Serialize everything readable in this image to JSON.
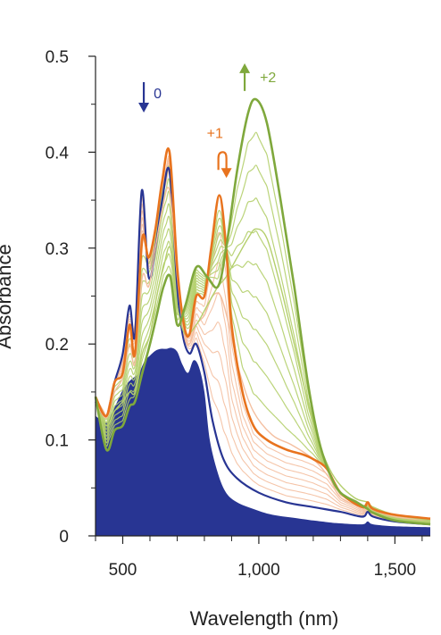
{
  "chart_data": {
    "type": "line",
    "xlabel": "Wavelength (nm)",
    "ylabel": "Absorbance",
    "xlim": [
      400,
      1630
    ],
    "ylim": [
      0,
      0.5
    ],
    "x_ticks": [
      500,
      1000,
      1500
    ],
    "x_tick_labels": [
      "500",
      "1,000",
      "1,500"
    ],
    "y_ticks": [
      0,
      0.1,
      0.2,
      0.3,
      0.4,
      0.5
    ],
    "y_tick_labels": [
      "0",
      "0.1",
      "0.2",
      "0.3",
      "0.4",
      "0.5"
    ],
    "grid": false,
    "legend": "none",
    "colors": {
      "state0": "#283593",
      "state1": "#E8731E",
      "state1_light": "#F4BFA0",
      "state2": "#7FA83C",
      "state2_light": "#B4CF6C"
    },
    "annotations": [
      {
        "text": "0",
        "x": 620,
        "y": 0.46,
        "color": "#283593",
        "arrow": "down"
      },
      {
        "text": "+1",
        "x": 835,
        "y": 0.415,
        "color": "#E8731E",
        "arrow": "loop-down"
      },
      {
        "text": "+2",
        "x": 1030,
        "y": 0.475,
        "color": "#7FA83C",
        "arrow": "up"
      }
    ],
    "series": [
      {
        "state": "0",
        "style": "filled",
        "x": [
          400,
          440,
          460,
          480,
          500,
          520,
          540,
          560,
          580,
          600,
          620,
          640,
          660,
          680,
          700,
          720,
          740,
          760,
          780,
          800,
          820,
          850,
          880,
          920,
          980,
          1050,
          1150,
          1200,
          1260,
          1300,
          1380,
          1400,
          1420,
          1500,
          1630
        ],
        "y": [
          0.125,
          0.118,
          0.128,
          0.14,
          0.152,
          0.16,
          0.165,
          0.17,
          0.182,
          0.188,
          0.193,
          0.195,
          0.195,
          0.196,
          0.192,
          0.178,
          0.17,
          0.183,
          0.176,
          0.15,
          0.1,
          0.065,
          0.045,
          0.035,
          0.028,
          0.022,
          0.018,
          0.016,
          0.014,
          0.013,
          0.012,
          0.015,
          0.012,
          0.01,
          0.009
        ]
      },
      {
        "state": "0",
        "style": "intermediate",
        "x": [
          400,
          440,
          470,
          500,
          525,
          545,
          570,
          595,
          620,
          645,
          672,
          700,
          720,
          745,
          770,
          800,
          830,
          870,
          920,
          1000,
          1100,
          1200,
          1300,
          1380,
          1400,
          1420,
          1500,
          1630
        ],
        "y": [
          0.14,
          0.125,
          0.16,
          0.19,
          0.24,
          0.21,
          0.36,
          0.27,
          0.3,
          0.35,
          0.38,
          0.26,
          0.21,
          0.19,
          0.2,
          0.17,
          0.12,
          0.08,
          0.06,
          0.045,
          0.035,
          0.03,
          0.025,
          0.02,
          0.025,
          0.02,
          0.015,
          0.012
        ]
      },
      {
        "state": "+1",
        "style": "bold",
        "x": [
          400,
          440,
          470,
          500,
          525,
          545,
          572,
          595,
          620,
          645,
          672,
          700,
          725,
          745,
          770,
          800,
          825,
          855,
          880,
          900,
          940,
          980,
          1030,
          1100,
          1160,
          1200,
          1250,
          1300,
          1380,
          1400,
          1420,
          1500,
          1630
        ],
        "y": [
          0.145,
          0.125,
          0.16,
          0.17,
          0.22,
          0.19,
          0.31,
          0.29,
          0.32,
          0.37,
          0.4,
          0.28,
          0.22,
          0.21,
          0.25,
          0.25,
          0.3,
          0.355,
          0.3,
          0.22,
          0.15,
          0.115,
          0.1,
          0.09,
          0.085,
          0.08,
          0.07,
          0.045,
          0.03,
          0.035,
          0.028,
          0.022,
          0.018
        ]
      },
      {
        "state": "+1",
        "style": "intermediate",
        "x": [
          400,
          440,
          470,
          500,
          525,
          545,
          572,
          595,
          620,
          645,
          672,
          700,
          725,
          745,
          770,
          800,
          830,
          860,
          890,
          930,
          980,
          1050,
          1120,
          1200,
          1260,
          1300,
          1380,
          1400,
          1420,
          1500,
          1630
        ],
        "y": [
          0.14,
          0.123,
          0.15,
          0.165,
          0.2,
          0.18,
          0.27,
          0.26,
          0.3,
          0.34,
          0.36,
          0.27,
          0.21,
          0.2,
          0.22,
          0.23,
          0.25,
          0.25,
          0.22,
          0.17,
          0.13,
          0.105,
          0.095,
          0.08,
          0.06,
          0.04,
          0.03,
          0.033,
          0.027,
          0.02,
          0.016
        ]
      },
      {
        "state": "+2",
        "style": "intermediate",
        "x": [
          400,
          440,
          470,
          500,
          525,
          545,
          572,
          600,
          625,
          650,
          675,
          700,
          730,
          770,
          810,
          850,
          880,
          920,
          960,
          990,
          1030,
          1080,
          1130,
          1180,
          1230,
          1280,
          1350,
          1400,
          1420,
          1500,
          1630
        ],
        "y": [
          0.14,
          0.115,
          0.13,
          0.14,
          0.15,
          0.15,
          0.19,
          0.21,
          0.25,
          0.28,
          0.3,
          0.24,
          0.21,
          0.22,
          0.24,
          0.26,
          0.27,
          0.29,
          0.31,
          0.32,
          0.31,
          0.26,
          0.2,
          0.14,
          0.09,
          0.06,
          0.04,
          0.035,
          0.03,
          0.022,
          0.016
        ]
      },
      {
        "state": "+2",
        "style": "bold",
        "x": [
          400,
          440,
          470,
          500,
          525,
          545,
          572,
          600,
          625,
          650,
          675,
          700,
          730,
          770,
          810,
          850,
          880,
          920,
          960,
          990,
          1030,
          1080,
          1130,
          1180,
          1220,
          1260,
          1300,
          1360,
          1400,
          1420,
          1500,
          1630
        ],
        "y": [
          0.145,
          0.09,
          0.11,
          0.115,
          0.135,
          0.14,
          0.17,
          0.2,
          0.23,
          0.26,
          0.27,
          0.22,
          0.24,
          0.28,
          0.27,
          0.26,
          0.3,
          0.38,
          0.44,
          0.455,
          0.43,
          0.35,
          0.26,
          0.16,
          0.1,
          0.065,
          0.045,
          0.035,
          0.028,
          0.024,
          0.016,
          0.012
        ]
      }
    ]
  }
}
